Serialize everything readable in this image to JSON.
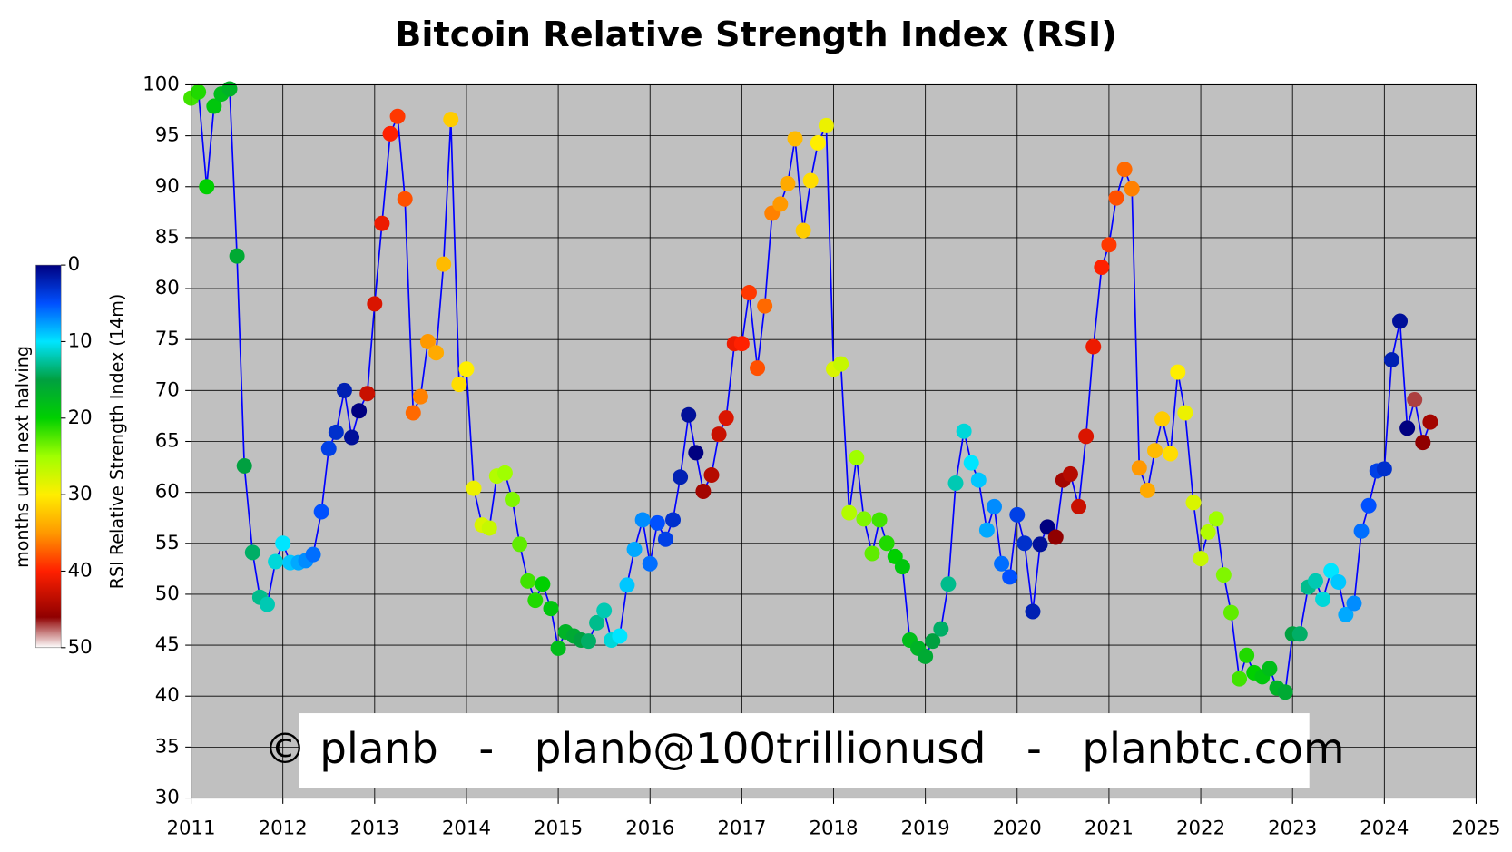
{
  "chart_data": {
    "type": "scatter",
    "title": "Bitcoin Relative Strength Index (RSI)",
    "ylabel": "RSI Relative Strength Index (14m)",
    "annotation": "© planb   -   planb@100trillionusd   -   planbtc.com",
    "colorbar": {
      "label": "months until next halving",
      "lim": [
        0,
        50
      ],
      "ticks": [
        0,
        10,
        20,
        30,
        40,
        50
      ],
      "scale": [
        [
          0,
          "#000080"
        ],
        [
          5,
          "#0050ff"
        ],
        [
          10,
          "#00e5ff"
        ],
        [
          15,
          "#00a040"
        ],
        [
          20,
          "#00d000"
        ],
        [
          25,
          "#a0ff00"
        ],
        [
          30,
          "#ffee00"
        ],
        [
          35,
          "#ff9900"
        ],
        [
          40,
          "#ff2000"
        ],
        [
          46,
          "#900000"
        ],
        [
          50,
          "#ffffff"
        ]
      ]
    },
    "line_color": "#0000ff",
    "grid": true,
    "xlim": [
      2011,
      2025
    ],
    "xticks": [
      2011,
      2012,
      2013,
      2014,
      2015,
      2016,
      2017,
      2018,
      2019,
      2020,
      2021,
      2022,
      2023,
      2024,
      2025
    ],
    "ylim": [
      30,
      100
    ],
    "yticks": [
      30,
      35,
      40,
      45,
      50,
      55,
      60,
      65,
      70,
      75,
      80,
      85,
      90,
      95,
      100
    ],
    "x": [
      2011,
      2011.08,
      2011.17,
      2011.25,
      2011.33,
      2011.42,
      2011.5,
      2011.58,
      2011.67,
      2011.75,
      2011.83,
      2011.92,
      2012,
      2012.08,
      2012.17,
      2012.25,
      2012.33,
      2012.42,
      2012.5,
      2012.58,
      2012.67,
      2012.75,
      2012.83,
      2012.92,
      2013,
      2013.08,
      2013.17,
      2013.25,
      2013.33,
      2013.42,
      2013.5,
      2013.58,
      2013.67,
      2013.75,
      2013.83,
      2013.92,
      2014,
      2014.08,
      2014.17,
      2014.25,
      2014.33,
      2014.42,
      2014.5,
      2014.58,
      2014.67,
      2014.75,
      2014.83,
      2014.92,
      2015,
      2015.08,
      2015.17,
      2015.25,
      2015.33,
      2015.42,
      2015.5,
      2015.58,
      2015.67,
      2015.75,
      2015.83,
      2015.92,
      2016,
      2016.08,
      2016.17,
      2016.25,
      2016.33,
      2016.42,
      2016.5,
      2016.58,
      2016.67,
      2016.75,
      2016.83,
      2016.92,
      2017,
      2017.08,
      2017.17,
      2017.25,
      2017.33,
      2017.42,
      2017.5,
      2017.58,
      2017.67,
      2017.75,
      2017.83,
      2017.92,
      2018,
      2018.08,
      2018.17,
      2018.25,
      2018.33,
      2018.42,
      2018.5,
      2018.58,
      2018.67,
      2018.75,
      2018.83,
      2018.92,
      2019,
      2019.08,
      2019.17,
      2019.25,
      2019.33,
      2019.42,
      2019.5,
      2019.58,
      2019.67,
      2019.75,
      2019.83,
      2019.92,
      2020,
      2020.08,
      2020.17,
      2020.25,
      2020.33,
      2020.42,
      2020.5,
      2020.58,
      2020.67,
      2020.75,
      2020.83,
      2020.92,
      2021,
      2021.08,
      2021.17,
      2021.25,
      2021.33,
      2021.42,
      2021.5,
      2021.58,
      2021.67,
      2021.75,
      2021.83,
      2021.92,
      2022,
      2022.08,
      2022.17,
      2022.25,
      2022.33,
      2022.42,
      2022.5,
      2022.58,
      2022.67,
      2022.75,
      2022.83,
      2022.92,
      2023,
      2023.08,
      2023.17,
      2023.25,
      2023.33,
      2023.42,
      2023.5,
      2023.58,
      2023.67,
      2023.75,
      2023.83,
      2023.92,
      2024,
      2024.08,
      2024.17,
      2024.25,
      2024.33,
      2024.42,
      2024.5
    ],
    "values": [
      98.7,
      99.3,
      90.0,
      97.9,
      99.1,
      99.6,
      83.2,
      62.6,
      54.1,
      49.7,
      49.0,
      53.2,
      55.0,
      53.1,
      53.1,
      53.3,
      53.9,
      58.1,
      64.3,
      65.9,
      70.0,
      65.4,
      68.0,
      69.7,
      78.5,
      86.4,
      95.2,
      96.9,
      88.8,
      67.8,
      69.4,
      74.8,
      73.7,
      82.4,
      96.6,
      70.6,
      72.1,
      60.4,
      56.8,
      56.5,
      61.6,
      61.9,
      59.3,
      54.9,
      51.3,
      49.4,
      51.0,
      48.6,
      44.7,
      46.3,
      45.9,
      45.5,
      45.4,
      47.2,
      48.4,
      45.5,
      45.9,
      50.9,
      54.4,
      57.3,
      53.0,
      57.0,
      55.4,
      57.3,
      61.5,
      67.6,
      63.9,
      60.1,
      61.7,
      65.7,
      67.3,
      74.6,
      74.6,
      79.6,
      72.2,
      78.3,
      87.4,
      88.3,
      90.3,
      94.7,
      85.7,
      90.6,
      94.3,
      96.0,
      72.1,
      72.6,
      58.0,
      63.4,
      57.4,
      54.0,
      57.3,
      55.0,
      53.7,
      52.7,
      45.5,
      44.7,
      43.9,
      45.4,
      46.6,
      51.0,
      60.9,
      66.0,
      62.9,
      61.2,
      56.3,
      58.6,
      53.0,
      51.7,
      57.8,
      55.0,
      48.3,
      54.9,
      56.6,
      55.6,
      61.2,
      61.8,
      58.6,
      65.5,
      74.3,
      82.1,
      84.3,
      88.9,
      91.7,
      89.8,
      62.4,
      60.2,
      64.1,
      67.2,
      63.8,
      71.8,
      67.8,
      59.0,
      53.5,
      56.1,
      57.4,
      51.9,
      48.2,
      41.7,
      44.0,
      42.3,
      41.9,
      42.7,
      40.8,
      40.4,
      46.1,
      46.1,
      50.7,
      51.3,
      49.5,
      52.3,
      51.2,
      48.0,
      49.1,
      56.2,
      58.7,
      62.1,
      62.3,
      73.0,
      76.8,
      66.3,
      69.1,
      64.9,
      66.9
    ],
    "color_values": [
      22,
      21,
      20,
      19,
      18,
      17,
      16,
      15,
      14,
      13,
      12,
      11,
      10,
      9,
      8,
      7,
      6,
      5,
      4,
      3,
      2,
      1,
      0,
      43,
      42,
      41,
      40,
      39,
      38,
      37,
      36,
      35,
      34,
      33,
      32,
      31,
      30,
      29,
      28,
      27,
      26,
      25,
      24,
      23,
      22,
      21,
      20,
      19,
      18,
      17,
      16,
      15,
      14,
      13,
      12,
      11,
      10,
      9,
      8,
      7,
      6,
      5,
      4,
      3,
      2,
      1,
      0,
      45,
      44,
      43,
      42,
      41,
      40,
      39,
      38,
      37,
      36,
      35,
      34,
      33,
      32,
      31,
      30,
      29,
      28,
      27,
      26,
      25,
      24,
      23,
      22,
      21,
      20,
      19,
      18,
      17,
      16,
      15,
      14,
      13,
      12,
      11,
      10,
      9,
      8,
      7,
      6,
      5,
      4,
      3,
      2,
      1,
      0,
      46,
      45,
      44,
      43,
      42,
      41,
      40,
      39,
      38,
      37,
      36,
      35,
      34,
      33,
      32,
      31,
      30,
      29,
      28,
      27,
      26,
      25,
      24,
      23,
      22,
      21,
      20,
      19,
      18,
      17,
      16,
      15,
      14,
      13,
      12,
      11,
      10,
      9,
      8,
      7,
      6,
      5,
      4,
      3,
      2,
      1,
      0,
      47,
      46,
      45
    ]
  }
}
